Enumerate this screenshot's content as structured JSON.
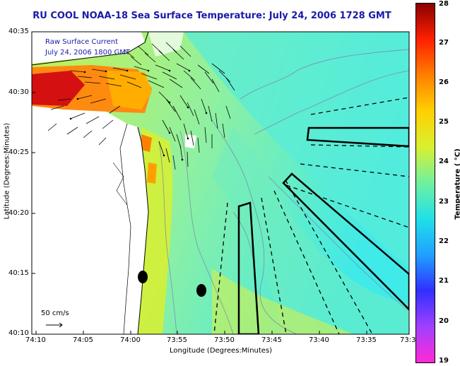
{
  "title": "RU COOL  NOAA-18  Sea Surface Temperature:  July 24, 2006 1728 GMT",
  "legend": {
    "line1": "Raw Surface Current",
    "line2": "July 24, 2006 1800 GMT"
  },
  "axes": {
    "xlabel": "Longitude (Degrees:Minutes)",
    "ylabel": "Latitude (Degrees:Minutes)",
    "xticks": [
      "74:10",
      "74:05",
      "74:00",
      "73:55",
      "73:50",
      "73:45",
      "73:40",
      "73:35",
      "73:3"
    ],
    "yticks": [
      "40:35",
      "40:30",
      "40:25",
      "40:20",
      "40:15",
      "40:10"
    ]
  },
  "colorbar": {
    "label": "Temperature ( °C)",
    "ticks": [
      "28",
      "27",
      "26",
      "25",
      "24",
      "23",
      "22",
      "21",
      "20",
      "19"
    ],
    "range": [
      19,
      28
    ],
    "colors": [
      "#ff2ad4",
      "#a040ff",
      "#3030ff",
      "#20a0ff",
      "#20e0e8",
      "#70f0a0",
      "#d8f030",
      "#ffd000",
      "#ff8000",
      "#ff2000",
      "#8a0000"
    ]
  },
  "scale": {
    "label": "50 cm/s"
  },
  "colors": {
    "land": "#ffffff",
    "title": "#1a1aa8",
    "ocean_main": "#bff05a",
    "ocean_cool": "#6cf0d0",
    "warm": "#ff6a10",
    "hot": "#c80000"
  }
}
